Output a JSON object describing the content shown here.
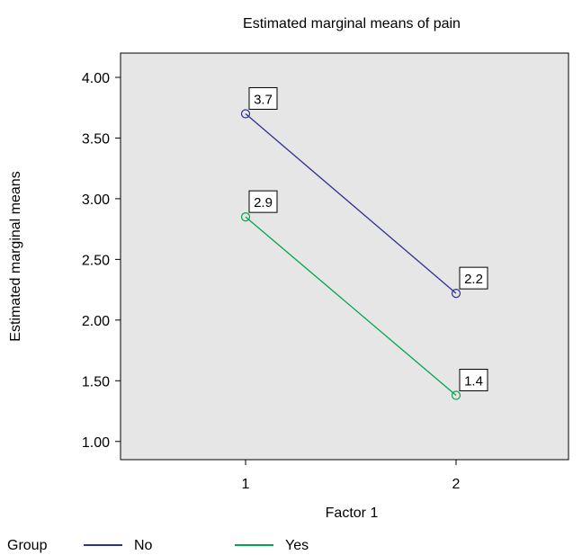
{
  "chart_data": {
    "type": "line",
    "title": "Estimated marginal means of pain",
    "xlabel": "Factor 1",
    "ylabel": "Estimated marginal means",
    "categories": [
      "1",
      "2"
    ],
    "ylim": [
      0.85,
      4.2
    ],
    "yticks": [
      "1.00",
      "1.50",
      "2.00",
      "2.50",
      "3.00",
      "3.50",
      "4.00"
    ],
    "legend": {
      "title": "Group",
      "position": "bottom-left"
    },
    "grid": false,
    "background": "#e6e6e6",
    "series": [
      {
        "name": "No",
        "color": "#2e3192",
        "values": [
          3.7,
          2.22
        ],
        "labels": [
          "3.7",
          "2.2"
        ]
      },
      {
        "name": "Yes",
        "color": "#00a651",
        "values": [
          2.85,
          1.38
        ],
        "labels": [
          "2.9",
          "1.4"
        ]
      }
    ]
  }
}
